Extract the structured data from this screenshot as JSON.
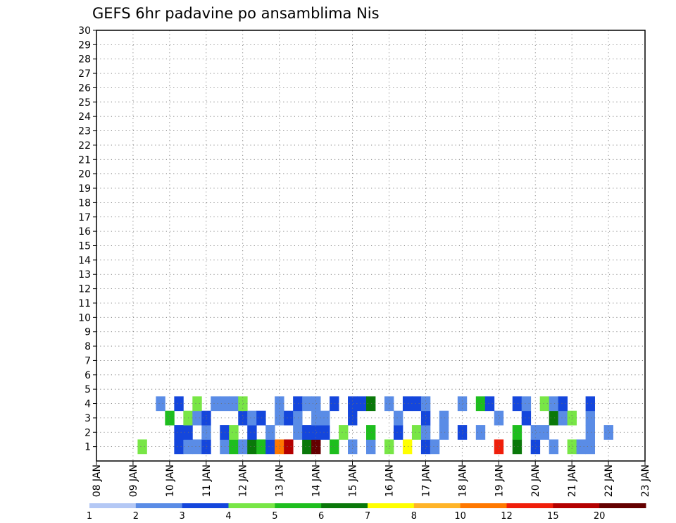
{
  "chart_data": {
    "type": "heatmap",
    "title": "GEFS 6hr padavine po ansamblima Nis",
    "x_ticks": [
      "08 JAN",
      "09 JAN",
      "10 JAN",
      "11 JAN",
      "12 JAN",
      "13 JAN",
      "14 JAN",
      "15 JAN",
      "16 JAN",
      "17 JAN",
      "18 JAN",
      "19 JAN",
      "20 JAN",
      "21 JAN",
      "22 JAN",
      "23 JAN"
    ],
    "x_range_days": [
      8,
      23
    ],
    "y_ticks": [
      "1",
      "2",
      "3",
      "4",
      "5",
      "6",
      "7",
      "8",
      "9",
      "10",
      "11",
      "12",
      "13",
      "14",
      "15",
      "16",
      "17",
      "18",
      "19",
      "20",
      "21",
      "22",
      "23",
      "24",
      "25",
      "26",
      "27",
      "28",
      "29",
      "30"
    ],
    "y_range": [
      0,
      30
    ],
    "grid": true,
    "colorbar": {
      "labels": [
        "1",
        "2",
        "3",
        "4",
        "5",
        "6",
        "7",
        "8",
        "10",
        "12",
        "15",
        "20"
      ],
      "colors": [
        "#b4c8f5",
        "#5a8ce6",
        "#1446dc",
        "#78e646",
        "#1ebe1e",
        "#0a780a",
        "#ffff00",
        "#ffb428",
        "#ff7800",
        "#f01e0a",
        "#b40000",
        "#640000"
      ]
    },
    "cells": [
      [
        9.25,
        1.0,
        3
      ],
      [
        10.25,
        1.0,
        2
      ],
      [
        10.5,
        1.0,
        1
      ],
      [
        10.75,
        1.0,
        1
      ],
      [
        11.0,
        1.0,
        2
      ],
      [
        11.5,
        1.0,
        1
      ],
      [
        11.75,
        1.0,
        4
      ],
      [
        12.0,
        1.0,
        1
      ],
      [
        12.25,
        1.0,
        5
      ],
      [
        12.5,
        1.0,
        4
      ],
      [
        12.75,
        1.0,
        2
      ],
      [
        13.0,
        1.0,
        8
      ],
      [
        13.25,
        1.0,
        10
      ],
      [
        13.75,
        1.0,
        5
      ],
      [
        14.0,
        1.0,
        11
      ],
      [
        14.5,
        1.0,
        4
      ],
      [
        15.0,
        1.0,
        1
      ],
      [
        15.5,
        1.0,
        1
      ],
      [
        16.0,
        1.0,
        3
      ],
      [
        16.5,
        1.0,
        6
      ],
      [
        17.0,
        1.0,
        2
      ],
      [
        17.25,
        1.0,
        1
      ],
      [
        19.0,
        1.0,
        9
      ],
      [
        19.5,
        1.0,
        5
      ],
      [
        20.0,
        1.0,
        2
      ],
      [
        20.5,
        1.0,
        1
      ],
      [
        21.0,
        1.0,
        3
      ],
      [
        21.25,
        1.0,
        1
      ],
      [
        21.5,
        1.0,
        1
      ],
      [
        10.25,
        2.0,
        2
      ],
      [
        10.5,
        2.0,
        2
      ],
      [
        11.0,
        2.0,
        1
      ],
      [
        11.5,
        2.0,
        2
      ],
      [
        11.75,
        2.0,
        3
      ],
      [
        12.25,
        2.0,
        2
      ],
      [
        12.75,
        2.0,
        1
      ],
      [
        13.5,
        2.0,
        1
      ],
      [
        13.75,
        2.0,
        2
      ],
      [
        14.0,
        2.0,
        2
      ],
      [
        14.25,
        2.0,
        2
      ],
      [
        14.75,
        2.0,
        3
      ],
      [
        15.5,
        2.0,
        4
      ],
      [
        16.25,
        2.0,
        2
      ],
      [
        16.75,
        2.0,
        3
      ],
      [
        17.0,
        2.0,
        1
      ],
      [
        17.5,
        2.0,
        1
      ],
      [
        18.0,
        2.0,
        2
      ],
      [
        18.5,
        2.0,
        1
      ],
      [
        19.5,
        2.0,
        4
      ],
      [
        20.0,
        2.0,
        1
      ],
      [
        20.25,
        2.0,
        1
      ],
      [
        21.5,
        2.0,
        1
      ],
      [
        22.0,
        2.0,
        1
      ],
      [
        10.0,
        3.0,
        4
      ],
      [
        10.5,
        3.0,
        3
      ],
      [
        10.75,
        3.0,
        1
      ],
      [
        11.0,
        3.0,
        2
      ],
      [
        12.0,
        3.0,
        2
      ],
      [
        12.25,
        3.0,
        1
      ],
      [
        12.5,
        3.0,
        2
      ],
      [
        13.0,
        3.0,
        1
      ],
      [
        13.25,
        3.0,
        2
      ],
      [
        13.5,
        3.0,
        1
      ],
      [
        14.0,
        3.0,
        1
      ],
      [
        14.25,
        3.0,
        1
      ],
      [
        15.0,
        3.0,
        2
      ],
      [
        16.25,
        3.0,
        1
      ],
      [
        17.0,
        3.0,
        2
      ],
      [
        17.5,
        3.0,
        1
      ],
      [
        19.0,
        3.0,
        1
      ],
      [
        19.75,
        3.0,
        2
      ],
      [
        20.5,
        3.0,
        5
      ],
      [
        20.75,
        3.0,
        1
      ],
      [
        21.0,
        3.0,
        3
      ],
      [
        21.5,
        3.0,
        1
      ],
      [
        9.75,
        4.0,
        1
      ],
      [
        10.25,
        4.0,
        2
      ],
      [
        10.75,
        4.0,
        3
      ],
      [
        11.25,
        4.0,
        1
      ],
      [
        11.5,
        4.0,
        1
      ],
      [
        11.75,
        4.0,
        1
      ],
      [
        12.0,
        4.0,
        3
      ],
      [
        13.0,
        4.0,
        1
      ],
      [
        13.5,
        4.0,
        2
      ],
      [
        13.75,
        4.0,
        1
      ],
      [
        14.0,
        4.0,
        1
      ],
      [
        14.5,
        4.0,
        2
      ],
      [
        15.0,
        4.0,
        2
      ],
      [
        15.25,
        4.0,
        2
      ],
      [
        15.5,
        4.0,
        5
      ],
      [
        16.0,
        4.0,
        1
      ],
      [
        16.5,
        4.0,
        2
      ],
      [
        16.75,
        4.0,
        2
      ],
      [
        17.0,
        4.0,
        1
      ],
      [
        18.0,
        4.0,
        1
      ],
      [
        18.5,
        4.0,
        4
      ],
      [
        18.75,
        4.0,
        2
      ],
      [
        19.5,
        4.0,
        2
      ],
      [
        19.75,
        4.0,
        1
      ],
      [
        20.25,
        4.0,
        3
      ],
      [
        20.5,
        4.0,
        1
      ],
      [
        20.75,
        4.0,
        2
      ],
      [
        21.5,
        4.0,
        2
      ]
    ]
  }
}
